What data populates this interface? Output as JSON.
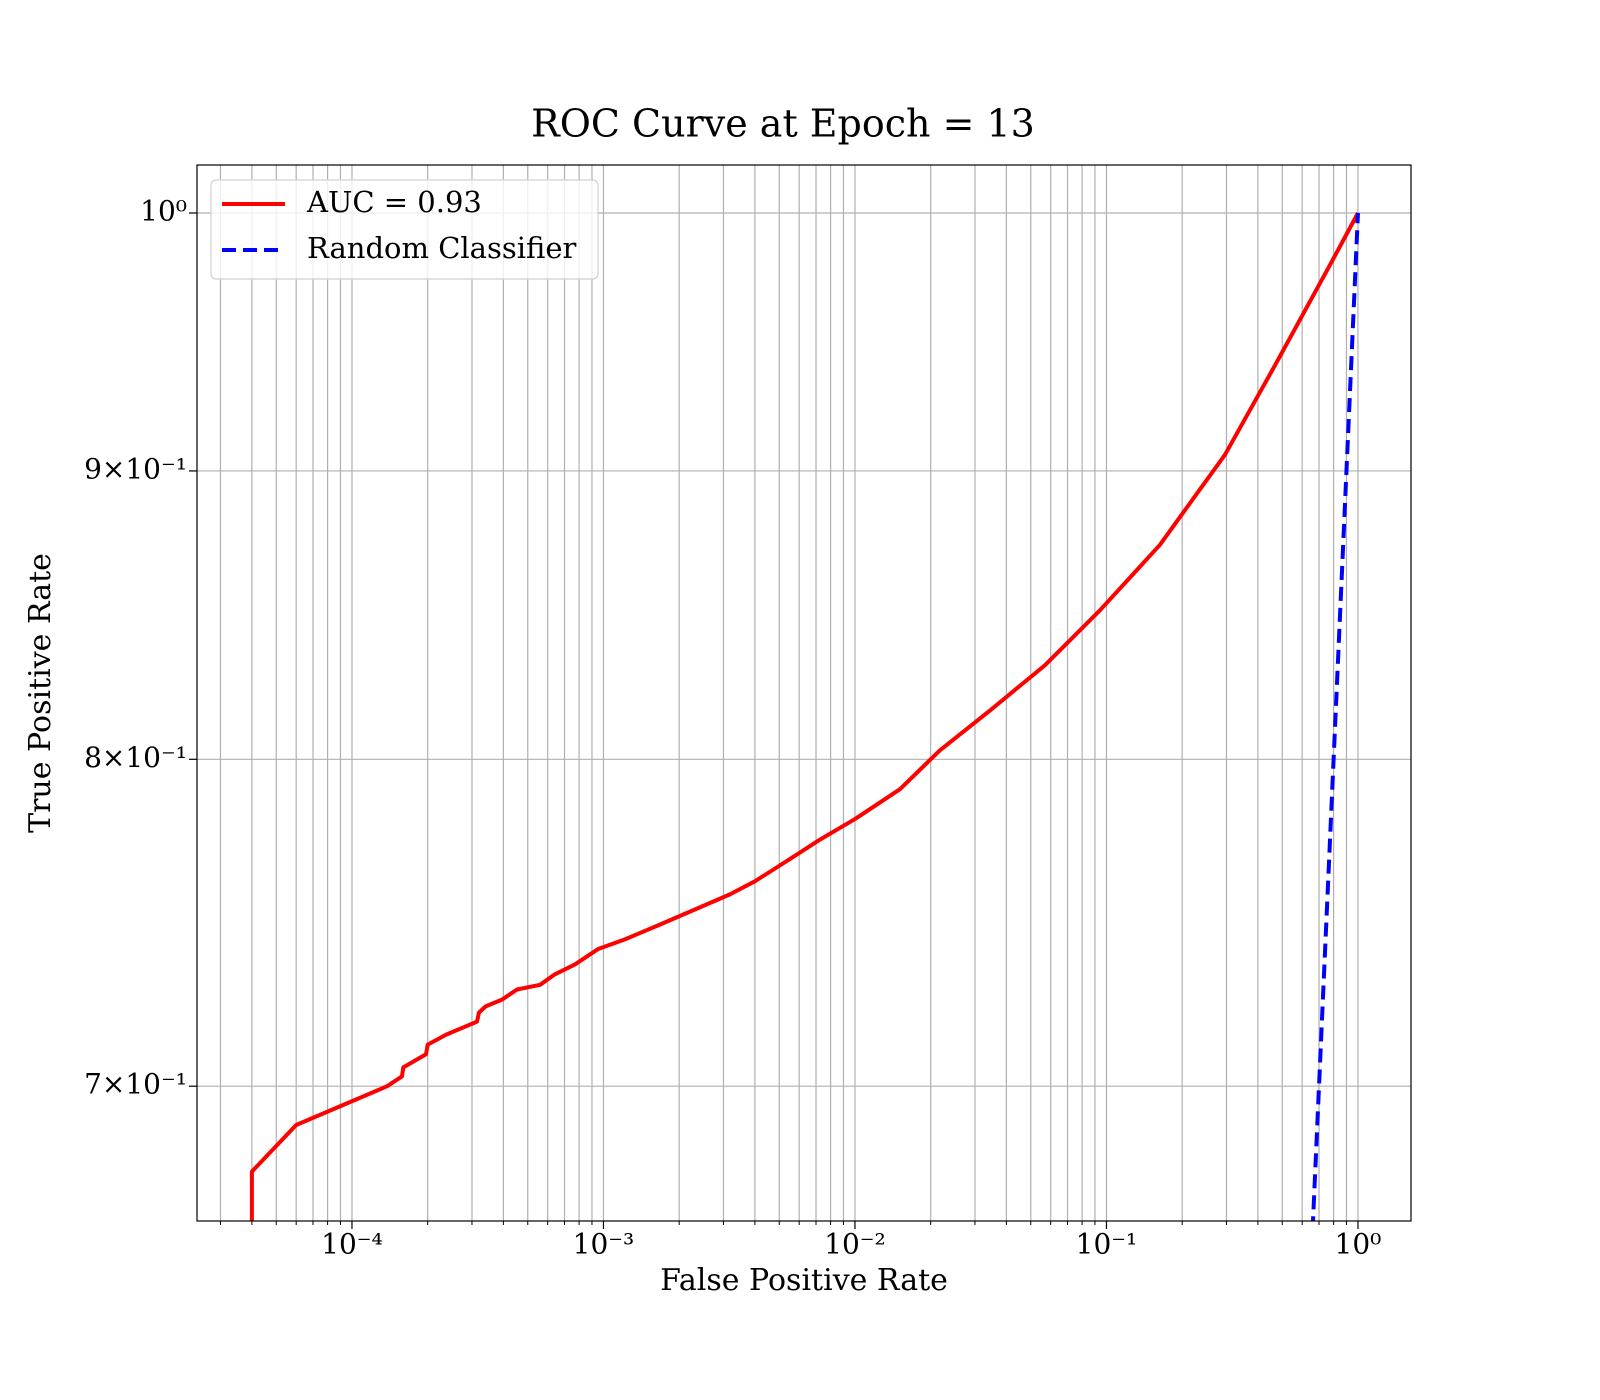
{
  "chart_data": {
    "type": "line",
    "title": "ROC Curve at Epoch = 13",
    "xlabel": "False Positive Rate",
    "ylabel": "True Positive Rate",
    "xscale": "log",
    "yscale": "log",
    "grid": true,
    "legend": "upper left",
    "xlim": [
      2.42e-05,
      1.625
    ],
    "ylim": [
      0.6625,
      1.0198
    ],
    "xticks": [
      {
        "value": 0.0001,
        "label": "10⁻⁴"
      },
      {
        "value": 0.001,
        "label": "10⁻³"
      },
      {
        "value": 0.01,
        "label": "10⁻²"
      },
      {
        "value": 0.1,
        "label": "10⁻¹"
      },
      {
        "value": 1,
        "label": "10⁰"
      }
    ],
    "xticks_minor": [
      3e-05,
      4e-05,
      5e-05,
      6e-05,
      7e-05,
      8e-05,
      9e-05,
      0.0002,
      0.0003,
      0.0004,
      0.0005,
      0.0006,
      0.0007,
      0.0008,
      0.0009,
      0.002,
      0.003,
      0.004,
      0.005,
      0.006,
      0.007,
      0.008,
      0.009,
      0.02,
      0.03,
      0.04,
      0.05,
      0.06,
      0.07,
      0.08,
      0.09,
      0.2,
      0.3,
      0.4,
      0.5,
      0.6,
      0.7,
      0.8,
      0.9
    ],
    "yticks": [
      {
        "value": 0.7,
        "label": "7×10⁻¹"
      },
      {
        "value": 0.8,
        "label": "8×10⁻¹"
      },
      {
        "value": 0.9,
        "label": "9×10⁻¹"
      },
      {
        "value": 1,
        "label": "10⁰"
      }
    ],
    "series": [
      {
        "name": "AUC = 0.93",
        "color": "#ff0000",
        "dashed": false,
        "x": [
          4e-05,
          4e-05,
          6e-05,
          0.000138,
          0.000158,
          0.00016,
          0.000197,
          0.0002,
          0.000237,
          0.000314,
          0.00032,
          0.00034,
          0.000395,
          0.000453,
          0.00056,
          0.00064,
          0.00077,
          0.00095,
          0.00122,
          0.00168,
          0.00231,
          0.00319,
          0.004,
          0.0055,
          0.0073,
          0.01,
          0.0151,
          0.0218,
          0.0344,
          0.0569,
          0.0942,
          0.163,
          0.296,
          0.468,
          0.774,
          1
        ],
        "values": [
          0.66,
          0.676,
          0.689,
          0.7,
          0.7028,
          0.7054,
          0.7092,
          0.712,
          0.7149,
          0.7187,
          0.7214,
          0.7232,
          0.7252,
          0.7282,
          0.7296,
          0.7327,
          0.7357,
          0.7403,
          0.7433,
          0.7478,
          0.7524,
          0.7571,
          0.7611,
          0.768,
          0.7743,
          0.7807,
          0.7903,
          0.803,
          0.8161,
          0.8313,
          0.8502,
          0.8732,
          0.906,
          0.9397,
          0.979,
          1
        ]
      },
      {
        "name": "Random Classifier",
        "color": "#0000ff",
        "dashed": true,
        "x": [
          0.66,
          1
        ],
        "values": [
          0.66,
          1
        ]
      }
    ]
  }
}
